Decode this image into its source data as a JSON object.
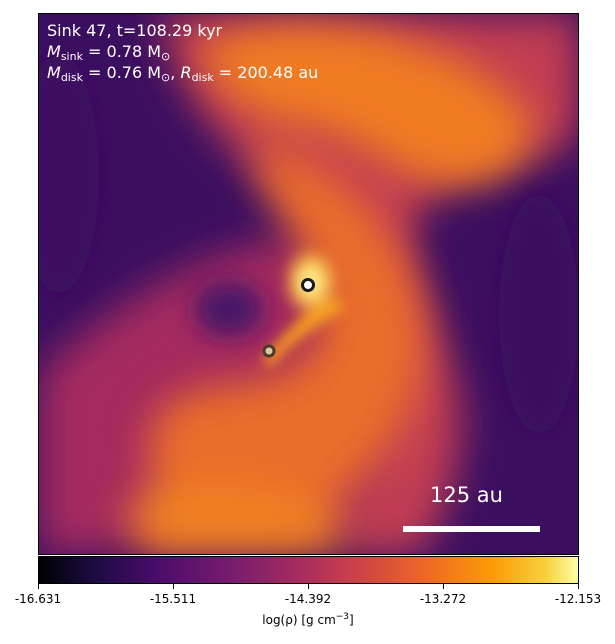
{
  "annotation": {
    "line1": "Sink 47, t=108.29 kyr",
    "mass_sink_label": "M",
    "mass_sink_sub": "sink",
    "mass_sink_value": " = 0.78 M",
    "mass_sun_sub": "⊙",
    "mass_disk_label": "M",
    "mass_disk_sub": "disk",
    "mass_disk_value": " = 0.76 M",
    "mass_disk_sun_sub": "⊙",
    "radius_sep": ", ",
    "radius_label": "R",
    "radius_sub": "disk",
    "radius_value": " = 200.48 au"
  },
  "scale_bar": {
    "label": "125 au"
  },
  "colorbar": {
    "colormap": "inferno",
    "ticks": [
      "-16.631",
      "-15.511",
      "-14.392",
      "-13.272",
      "-12.153"
    ],
    "label_pre": "log(ρ) [g cm",
    "label_exp": "−3",
    "label_post": "]"
  },
  "colors": {
    "background_dark": "#3a0d5e",
    "filament": "#f07c20",
    "core": "#fce38a",
    "sink_primary": "#1a1a1a",
    "sink_secondary": "#4a3a2a"
  }
}
